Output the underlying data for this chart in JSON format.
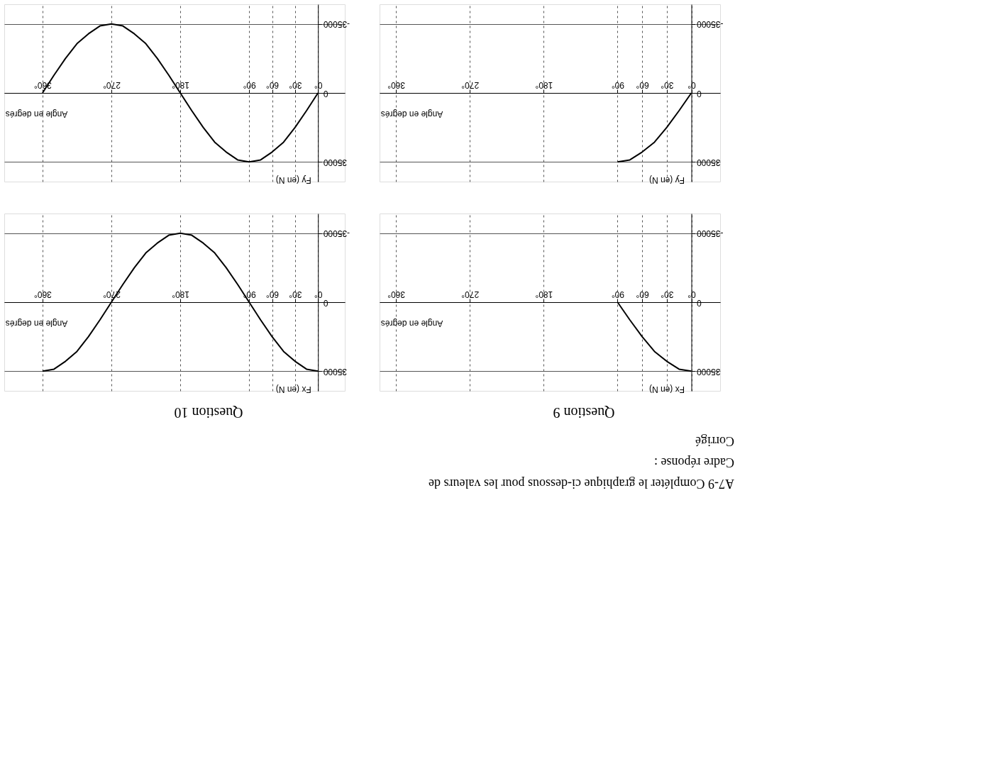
{
  "chart_data": [
    {
      "type": "line",
      "ylabel": "Fy (en N)",
      "xlabel": "Angle en degrés",
      "xlim": [
        410,
        -35
      ],
      "ylim": [
        45000,
        -45000
      ],
      "xticks": [
        {
          "value": 0,
          "label": "0°"
        },
        {
          "value": 30,
          "label": "30°"
        },
        {
          "value": 60,
          "label": "60°"
        },
        {
          "value": 90,
          "label": "90°"
        },
        {
          "value": 180,
          "label": "180°"
        },
        {
          "value": 270,
          "label": "270°"
        },
        {
          "value": 360,
          "label": "360°"
        }
      ],
      "yticks": [
        -35000,
        0,
        35000
      ],
      "grid": true,
      "marker": "none",
      "line_style": "solid",
      "series": [
        {
          "color": "#000000",
          "x": [
            0,
            15,
            30,
            45,
            60,
            75,
            90,
            105,
            120,
            135,
            150,
            165,
            180,
            195,
            210,
            225,
            240,
            255,
            270,
            285,
            300,
            315,
            330,
            345,
            360
          ],
          "values": [
            0,
            9000,
            17500,
            25000,
            30000,
            34000,
            35000,
            34000,
            30000,
            25000,
            17500,
            9000,
            0,
            -9000,
            -17500,
            -25000,
            -30000,
            -34000,
            -35000,
            -34000,
            -30000,
            -25000,
            -17500,
            -9000,
            0
          ]
        }
      ]
    },
    {
      "type": "line",
      "ylabel": "Fy (en N)",
      "xlabel": "Angle en degrés",
      "xlim": [
        380,
        -35
      ],
      "ylim": [
        45000,
        -45000
      ],
      "xticks": [
        {
          "value": 0,
          "label": "0°"
        },
        {
          "value": 30,
          "label": "30°"
        },
        {
          "value": 60,
          "label": "60°"
        },
        {
          "value": 90,
          "label": "90°"
        },
        {
          "value": 180,
          "label": "180°"
        },
        {
          "value": 270,
          "label": "270°"
        },
        {
          "value": 360,
          "label": "360°"
        }
      ],
      "yticks": [
        -35000,
        0,
        35000
      ],
      "grid": true,
      "marker": "none",
      "line_style": "solid",
      "series": [
        {
          "color": "#000000",
          "x": [
            0,
            15,
            30,
            45,
            60,
            75,
            90
          ],
          "values": [
            0,
            9000,
            17500,
            25000,
            30000,
            34000,
            35000
          ]
        }
      ]
    },
    {
      "type": "line",
      "title": "Question 10",
      "ylabel": "Fx (en N)",
      "xlabel": "Angle en degrés",
      "xlim": [
        410,
        -35
      ],
      "ylim": [
        45000,
        -45000
      ],
      "xticks": [
        {
          "value": 0,
          "label": "0°"
        },
        {
          "value": 30,
          "label": "30°"
        },
        {
          "value": 60,
          "label": "60°"
        },
        {
          "value": 90,
          "label": "90°"
        },
        {
          "value": 180,
          "label": "180°"
        },
        {
          "value": 270,
          "label": "270°"
        },
        {
          "value": 360,
          "label": "360°"
        }
      ],
      "yticks": [
        -35000,
        0,
        35000
      ],
      "grid": true,
      "marker": "none",
      "line_style": "solid",
      "series": [
        {
          "color": "#000000",
          "x": [
            0,
            15,
            30,
            45,
            60,
            75,
            90,
            105,
            120,
            135,
            150,
            165,
            180,
            195,
            210,
            225,
            240,
            255,
            270,
            285,
            300,
            315,
            330,
            345,
            360
          ],
          "values": [
            35000,
            34000,
            30000,
            25000,
            17500,
            9000,
            0,
            -9000,
            -17500,
            -25000,
            -30000,
            -34000,
            -35000,
            -34000,
            -30000,
            -25000,
            -17500,
            -9000,
            0,
            9000,
            17500,
            25000,
            30000,
            34000,
            35000
          ]
        }
      ]
    },
    {
      "type": "line",
      "title": "Question 9",
      "ylabel": "Fx (en N)",
      "xlabel": "Angle en degrés",
      "xlim": [
        380,
        -35
      ],
      "ylim": [
        45000,
        -45000
      ],
      "xticks": [
        {
          "value": 0,
          "label": "0°"
        },
        {
          "value": 30,
          "label": "30°"
        },
        {
          "value": 60,
          "label": "60°"
        },
        {
          "value": 90,
          "label": "90°"
        },
        {
          "value": 180,
          "label": "180°"
        },
        {
          "value": 270,
          "label": "270°"
        },
        {
          "value": 360,
          "label": "360°"
        }
      ],
      "yticks": [
        -35000,
        0,
        35000
      ],
      "grid": true,
      "marker": "none",
      "line_style": "solid",
      "annotations": [
        "A7-9 Compléter le graphique ci-dessous pour les valeurs de",
        "Cadre réponse :",
        "Corrigé"
      ],
      "series": [
        {
          "color": "#000000",
          "x": [
            0,
            15,
            30,
            45,
            60,
            75,
            90
          ],
          "values": [
            35000,
            34000,
            30000,
            25000,
            17500,
            9000,
            0
          ]
        }
      ]
    }
  ]
}
